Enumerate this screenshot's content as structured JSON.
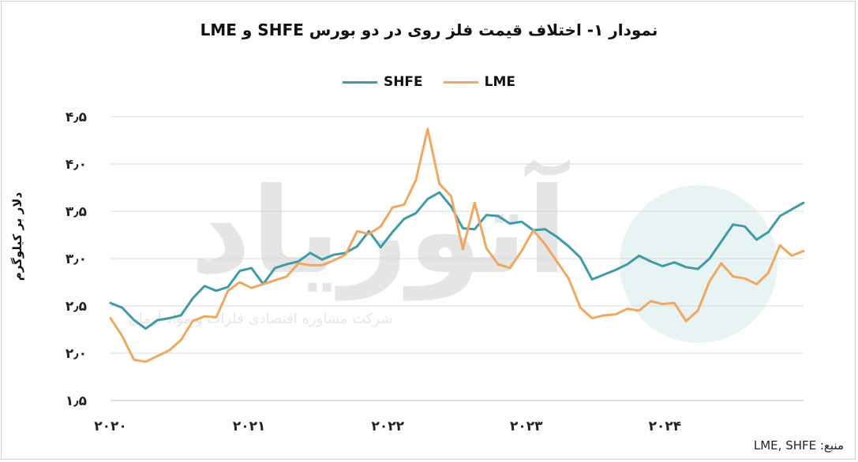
{
  "title": "نمودار ۱- اختلاف قیمت فلز روی در دو بورس SHFE و LME",
  "source_label": "منبع: LME, SHFE",
  "watermark": {
    "brand": "آتوریاد",
    "tagline": "شرکت مشاوره اقتصادی فلزات و مواد آرمان"
  },
  "chart_data": {
    "type": "line",
    "title": "نمودار ۱- اختلاف قیمت فلز روی در دو بورس SHFE و LME",
    "xlabel": "",
    "ylabel": "دلار بر کیلوگرم",
    "ylim": [
      1.5,
      4.5
    ],
    "yticks": [
      1.5,
      2.0,
      2.5,
      3.0,
      3.5,
      4.0,
      4.5
    ],
    "ytick_labels": [
      "۱٫۵",
      "۲٫۰",
      "۲٫۵",
      "۳٫۰",
      "۳٫۵",
      "۴٫۰",
      "۴٫۵"
    ],
    "x_start_year": 2020,
    "x_end": 2025.0,
    "xticks": [
      2020,
      2021,
      2022,
      2023,
      2024
    ],
    "xtick_labels": [
      "۲۰۲۰",
      "۲۰۲۱",
      "۲۰۲۲",
      "۲۰۲۳",
      "۲۰۲۴"
    ],
    "grid": true,
    "legend_position": "top",
    "series": [
      {
        "name": "SHFE",
        "color": "#3f9ba5",
        "values": [
          2.53,
          2.48,
          2.35,
          2.26,
          2.35,
          2.37,
          2.4,
          2.58,
          2.71,
          2.66,
          2.7,
          2.87,
          2.9,
          2.73,
          2.9,
          2.94,
          2.97,
          3.06,
          2.99,
          3.04,
          3.06,
          3.13,
          3.29,
          3.12,
          3.28,
          3.42,
          3.48,
          3.63,
          3.7,
          3.55,
          3.32,
          3.31,
          3.46,
          3.45,
          3.37,
          3.39,
          3.3,
          3.31,
          3.23,
          3.13,
          3.01,
          2.78,
          2.83,
          2.88,
          2.94,
          3.03,
          2.97,
          2.92,
          2.96,
          2.91,
          2.89,
          3.0,
          3.18,
          3.36,
          3.34,
          3.2,
          3.28,
          3.45,
          3.52,
          3.59
        ]
      },
      {
        "name": "LME",
        "color": "#f0a760",
        "values": [
          2.37,
          2.18,
          1.93,
          1.91,
          1.97,
          2.03,
          2.14,
          2.34,
          2.39,
          2.38,
          2.66,
          2.75,
          2.69,
          2.73,
          2.77,
          2.81,
          2.95,
          2.93,
          2.93,
          2.98,
          3.04,
          3.29,
          3.26,
          3.34,
          3.54,
          3.57,
          3.83,
          4.37,
          3.79,
          3.66,
          3.1,
          3.59,
          3.11,
          2.94,
          2.9,
          3.08,
          3.3,
          3.15,
          2.97,
          2.79,
          2.48,
          2.37,
          2.4,
          2.41,
          2.47,
          2.45,
          2.55,
          2.52,
          2.53,
          2.34,
          2.45,
          2.76,
          2.95,
          2.81,
          2.79,
          2.73,
          2.85,
          3.14,
          3.03,
          3.08
        ]
      }
    ]
  }
}
